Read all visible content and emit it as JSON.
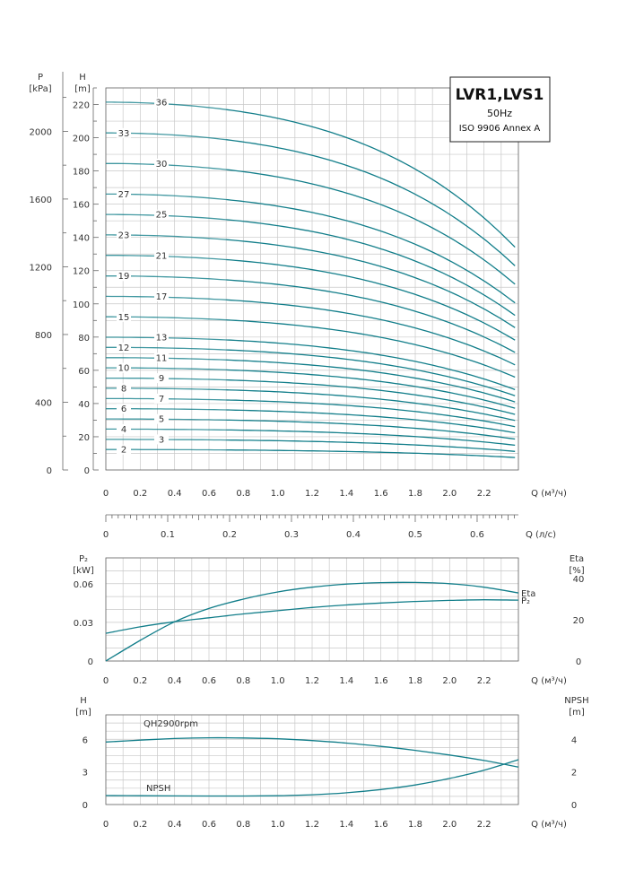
{
  "chart_data": [
    {
      "type": "line",
      "name": "QH curves",
      "title": "LVR1,LVS1",
      "subtitle_freq": "50Hz",
      "subtitle_std": "ISO 9906 Annex A",
      "y_left_label": "P",
      "y_left_unit": "[kPa]",
      "y_right_label": "H",
      "y_right_unit": "[m]",
      "xlabel": "Q (м³/ч)",
      "xlim": [
        0,
        2.4
      ],
      "ylim": [
        0,
        230
      ],
      "x_ticks": [
        "0",
        "0.2",
        "0.4",
        "0.6",
        "0.8",
        "1.0",
        "1.2",
        "1.4",
        "1.6",
        "1.8",
        "2.0",
        "2.2"
      ],
      "h_ticks": [
        "0",
        "20",
        "40",
        "60",
        "80",
        "100",
        "120",
        "140",
        "160",
        "180",
        "200",
        "220"
      ],
      "p_ticks": [
        "0",
        "400",
        "800",
        "1200",
        "1600",
        "2000"
      ],
      "x_max_curve": 2.38,
      "solid_from": 0.7,
      "series": [
        {
          "name": "2",
          "h0": 12.3,
          "hmax": 7.5
        },
        {
          "name": "3",
          "h0": 18.4,
          "hmax": 11.2
        },
        {
          "name": "4",
          "h0": 24.6,
          "hmax": 14.9
        },
        {
          "name": "5",
          "h0": 30.7,
          "hmax": 18.6
        },
        {
          "name": "6",
          "h0": 36.9,
          "hmax": 22.4
        },
        {
          "name": "7",
          "h0": 43.0,
          "hmax": 26.1
        },
        {
          "name": "8",
          "h0": 49.2,
          "hmax": 29.8
        },
        {
          "name": "9",
          "h0": 55.3,
          "hmax": 33.5
        },
        {
          "name": "10",
          "h0": 61.5,
          "hmax": 37.2
        },
        {
          "name": "11",
          "h0": 67.6,
          "hmax": 41.0
        },
        {
          "name": "12",
          "h0": 73.8,
          "hmax": 44.7
        },
        {
          "name": "13",
          "h0": 79.9,
          "hmax": 48.4
        },
        {
          "name": "15",
          "h0": 92.2,
          "hmax": 55.9
        },
        {
          "name": "17",
          "h0": 104.5,
          "hmax": 63.3
        },
        {
          "name": "19",
          "h0": 116.8,
          "hmax": 70.8
        },
        {
          "name": "21",
          "h0": 129.2,
          "hmax": 78.2
        },
        {
          "name": "23",
          "h0": 141.5,
          "hmax": 85.7
        },
        {
          "name": "25",
          "h0": 153.8,
          "hmax": 93.1
        },
        {
          "name": "27",
          "h0": 166.1,
          "hmax": 100.6
        },
        {
          "name": "30",
          "h0": 184.5,
          "hmax": 111.8
        },
        {
          "name": "33",
          "h0": 202.9,
          "hmax": 122.9
        },
        {
          "name": "36",
          "h0": 221.4,
          "hmax": 134.1
        }
      ]
    },
    {
      "type": "axis",
      "name": "flow l/s",
      "xlabel": "Q (л/с)",
      "xlim": [
        0,
        0.6667
      ],
      "x_ticks": [
        "0",
        "0.1",
        "0.2",
        "0.3",
        "0.4",
        "0.5",
        "0.6"
      ]
    },
    {
      "type": "line",
      "name": "Power and efficiency",
      "y_left_label": "P₂",
      "y_left_unit": "[kW]",
      "y_right_label": "Eta",
      "y_right_unit": "[%]",
      "xlabel": "Q (м³/ч)",
      "xlim": [
        0,
        2.4
      ],
      "ylim_left": [
        0,
        0.08
      ],
      "ylim_right": [
        0,
        50
      ],
      "left_ticks": [
        "0",
        "0.03",
        "0.06"
      ],
      "right_ticks": [
        "0",
        "20",
        "40"
      ],
      "x_ticks": [
        "0",
        "0.2",
        "0.4",
        "0.6",
        "0.8",
        "1.0",
        "1.2",
        "1.4",
        "1.6",
        "1.8",
        "2.0",
        "2.2"
      ],
      "series": [
        {
          "name": "Eta",
          "axis": "right",
          "x": [
            0,
            0.2,
            0.4,
            0.6,
            0.8,
            1.0,
            1.2,
            1.4,
            1.6,
            1.8,
            2.0,
            2.2,
            2.4
          ],
          "y": [
            0,
            10,
            19,
            25.5,
            30,
            33.5,
            35.8,
            37.3,
            38,
            38.1,
            37.5,
            35.8,
            33
          ]
        },
        {
          "name": "P₂",
          "axis": "left",
          "x": [
            0,
            0.2,
            0.4,
            0.6,
            0.8,
            1.0,
            1.2,
            1.4,
            1.6,
            1.8,
            2.0,
            2.2,
            2.4
          ],
          "y": [
            0.0215,
            0.0265,
            0.0305,
            0.0335,
            0.0365,
            0.039,
            0.0415,
            0.0435,
            0.045,
            0.0462,
            0.047,
            0.0475,
            0.0472
          ]
        }
      ]
    },
    {
      "type": "line",
      "name": "QH 2900rpm and NPSH",
      "y_left_label": "H",
      "y_left_unit": "[m]",
      "y_right_label": "NPSH",
      "y_right_unit": "[m]",
      "xlabel": "Q (м³/ч)",
      "xlim": [
        0,
        2.4
      ],
      "ylim_left": [
        0,
        8.25
      ],
      "ylim_right": [
        0,
        5.5
      ],
      "left_ticks": [
        "0",
        "3",
        "6"
      ],
      "right_ticks": [
        "0",
        "2",
        "4"
      ],
      "x_ticks": [
        "0",
        "0.2",
        "0.4",
        "0.6",
        "0.8",
        "1.0",
        "1.2",
        "1.4",
        "1.6",
        "1.8",
        "2.0",
        "2.2"
      ],
      "series": [
        {
          "name": "QH2900rpm",
          "axis": "left",
          "x": [
            0,
            0.2,
            0.4,
            0.6,
            0.8,
            1.0,
            1.2,
            1.4,
            1.6,
            1.8,
            2.0,
            2.2,
            2.4
          ],
          "y": [
            5.75,
            5.92,
            6.07,
            6.14,
            6.12,
            6.05,
            5.88,
            5.65,
            5.35,
            4.98,
            4.55,
            4.05,
            3.45
          ]
        },
        {
          "name": "NPSH",
          "axis": "right",
          "x": [
            0,
            0.2,
            0.4,
            0.6,
            0.8,
            1.0,
            1.2,
            1.4,
            1.6,
            1.8,
            2.0,
            2.2,
            2.4
          ],
          "y": [
            0.55,
            0.54,
            0.53,
            0.52,
            0.52,
            0.54,
            0.6,
            0.72,
            0.92,
            1.2,
            1.6,
            2.1,
            2.75
          ]
        }
      ]
    }
  ]
}
